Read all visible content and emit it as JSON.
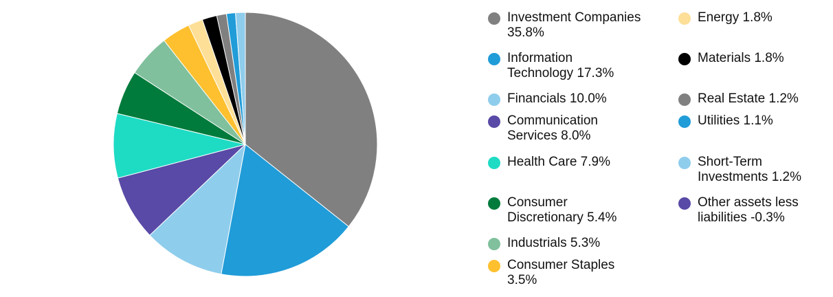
{
  "chart_data": {
    "type": "pie",
    "start_angle_deg": 0,
    "direction": "clockwise",
    "slices": [
      {
        "name": "Investment Companies",
        "value": 35.8,
        "label": "Investment Companies\n35.8%",
        "color": "#808080"
      },
      {
        "name": "Information Technology",
        "value": 17.3,
        "label": "Information\nTechnology 17.3%",
        "color": "#209CD8"
      },
      {
        "name": "Financials",
        "value": 10.0,
        "label": "Financials 10.0%",
        "color": "#8FCDEC"
      },
      {
        "name": "Communication Services",
        "value": 8.0,
        "label": "Communication\nServices 8.0%",
        "color": "#584AA6"
      },
      {
        "name": "Health Care",
        "value": 7.9,
        "label": "Health Care 7.9%",
        "color": "#1EDBC4"
      },
      {
        "name": "Consumer Discretionary",
        "value": 5.4,
        "label": "Consumer\nDiscretionary 5.4%",
        "color": "#007B3C"
      },
      {
        "name": "Industrials",
        "value": 5.3,
        "label": "Industrials 5.3%",
        "color": "#80C09D"
      },
      {
        "name": "Consumer Staples",
        "value": 3.5,
        "label": "Consumer Staples\n3.5%",
        "color": "#FEC02F"
      },
      {
        "name": "Energy",
        "value": 1.8,
        "label": "Energy 1.8%",
        "color": "#FEDF97"
      },
      {
        "name": "Materials",
        "value": 1.8,
        "label": "Materials 1.8%",
        "color": "#000000"
      },
      {
        "name": "Real Estate",
        "value": 1.2,
        "label": "Real Estate 1.2%",
        "color": "#808080"
      },
      {
        "name": "Utilities",
        "value": 1.1,
        "label": "Utilities 1.1%",
        "color": "#209CD8"
      },
      {
        "name": "Short-Term Investments",
        "value": 1.2,
        "label": "Short-Term\nInvestments 1.2%",
        "color": "#8FCDEC"
      },
      {
        "name": "Other assets less liabilities",
        "value": -0.3,
        "label": "Other assets less\nliabilities -0.3%",
        "color": "#584AA6"
      }
    ],
    "legend_position": "right"
  }
}
